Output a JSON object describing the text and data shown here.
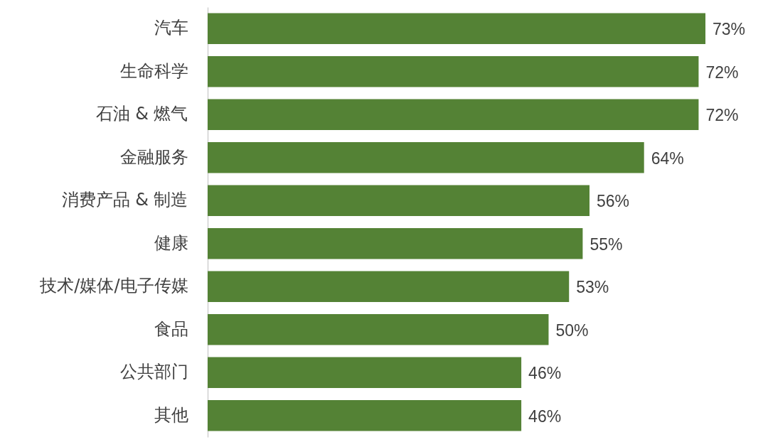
{
  "chart_data": {
    "type": "bar",
    "orientation": "horizontal",
    "categories": [
      "汽车",
      "生命科学",
      "石油 & 燃气",
      "金融服务",
      "消费产品 & 制造",
      "健康",
      "技术/媒体/电子传媒",
      "食品",
      "公共部门",
      "其他"
    ],
    "values": [
      73,
      72,
      72,
      64,
      56,
      55,
      53,
      50,
      46,
      46
    ],
    "value_labels": [
      "73%",
      "72%",
      "72%",
      "64%",
      "56%",
      "55%",
      "53%",
      "50%",
      "46%",
      "46%"
    ],
    "color": "#548235"
  }
}
